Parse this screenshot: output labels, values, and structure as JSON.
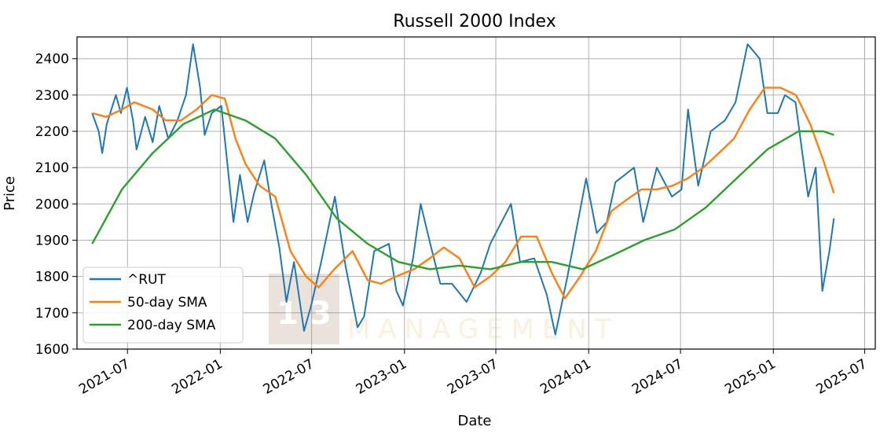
{
  "chart_data": {
    "type": "line",
    "title": "Russell 2000 Index",
    "xlabel": "Date",
    "ylabel": "Price",
    "xlim": [
      "2021-03-23",
      "2025-07-22"
    ],
    "ylim": [
      1600,
      2460
    ],
    "grid": true,
    "legend_position": "lower left",
    "x_ticks": [
      "2021-07",
      "2022-01",
      "2022-07",
      "2023-01",
      "2023-07",
      "2024-01",
      "2024-07",
      "2025-01",
      "2025-07"
    ],
    "y_ticks": [
      1600,
      1700,
      1800,
      1900,
      2000,
      2100,
      2200,
      2300,
      2400
    ],
    "series": [
      {
        "name": "^RUT",
        "color": "#1f77b4",
        "points": [
          [
            "2021-04-22",
            2250
          ],
          [
            "2021-05-05",
            2200
          ],
          [
            "2021-05-12",
            2140
          ],
          [
            "2021-05-21",
            2220
          ],
          [
            "2021-06-08",
            2300
          ],
          [
            "2021-06-18",
            2250
          ],
          [
            "2021-06-30",
            2320
          ],
          [
            "2021-07-12",
            2230
          ],
          [
            "2021-07-19",
            2150
          ],
          [
            "2021-08-05",
            2240
          ],
          [
            "2021-08-20",
            2170
          ],
          [
            "2021-09-02",
            2270
          ],
          [
            "2021-09-20",
            2180
          ],
          [
            "2021-10-08",
            2230
          ],
          [
            "2021-10-25",
            2300
          ],
          [
            "2021-11-08",
            2440
          ],
          [
            "2021-11-22",
            2320
          ],
          [
            "2021-12-01",
            2190
          ],
          [
            "2021-12-15",
            2250
          ],
          [
            "2022-01-03",
            2270
          ],
          [
            "2022-01-12",
            2150
          ],
          [
            "2022-01-27",
            1950
          ],
          [
            "2022-02-09",
            2080
          ],
          [
            "2022-02-24",
            1950
          ],
          [
            "2022-03-09",
            2030
          ],
          [
            "2022-03-29",
            2120
          ],
          [
            "2022-04-12",
            2000
          ],
          [
            "2022-04-28",
            1880
          ],
          [
            "2022-05-12",
            1730
          ],
          [
            "2022-05-27",
            1840
          ],
          [
            "2022-06-16",
            1650
          ],
          [
            "2022-06-30",
            1720
          ],
          [
            "2022-07-20",
            1840
          ],
          [
            "2022-08-16",
            2020
          ],
          [
            "2022-09-06",
            1830
          ],
          [
            "2022-09-30",
            1660
          ],
          [
            "2022-10-13",
            1690
          ],
          [
            "2022-11-02",
            1870
          ],
          [
            "2022-12-01",
            1890
          ],
          [
            "2022-12-16",
            1760
          ],
          [
            "2022-12-29",
            1720
          ],
          [
            "2023-01-18",
            1850
          ],
          [
            "2023-02-02",
            2000
          ],
          [
            "2023-02-21",
            1890
          ],
          [
            "2023-03-13",
            1780
          ],
          [
            "2023-04-05",
            1780
          ],
          [
            "2023-05-04",
            1730
          ],
          [
            "2023-06-01",
            1810
          ],
          [
            "2023-06-20",
            1890
          ],
          [
            "2023-07-31",
            2000
          ],
          [
            "2023-08-18",
            1840
          ],
          [
            "2023-09-15",
            1850
          ],
          [
            "2023-10-10",
            1750
          ],
          [
            "2023-10-27",
            1640
          ],
          [
            "2023-11-20",
            1800
          ],
          [
            "2023-12-27",
            2070
          ],
          [
            "2024-01-17",
            1920
          ],
          [
            "2024-02-06",
            1950
          ],
          [
            "2024-02-23",
            2060
          ],
          [
            "2024-03-31",
            2100
          ],
          [
            "2024-04-18",
            1950
          ],
          [
            "2024-05-15",
            2100
          ],
          [
            "2024-06-14",
            2020
          ],
          [
            "2024-07-03",
            2040
          ],
          [
            "2024-07-16",
            2260
          ],
          [
            "2024-08-05",
            2050
          ],
          [
            "2024-08-30",
            2200
          ],
          [
            "2024-09-27",
            2230
          ],
          [
            "2024-10-18",
            2280
          ],
          [
            "2024-11-11",
            2440
          ],
          [
            "2024-12-05",
            2400
          ],
          [
            "2024-12-20",
            2250
          ],
          [
            "2025-01-10",
            2250
          ],
          [
            "2025-01-24",
            2300
          ],
          [
            "2025-02-14",
            2280
          ],
          [
            "2025-03-11",
            2020
          ],
          [
            "2025-03-26",
            2100
          ],
          [
            "2025-04-08",
            1760
          ],
          [
            "2025-04-22",
            1870
          ],
          [
            "2025-05-01",
            1960
          ]
        ]
      },
      {
        "name": "50-day SMA",
        "color": "#ff7f0e",
        "points": [
          [
            "2021-04-22",
            2250
          ],
          [
            "2021-05-20",
            2240
          ],
          [
            "2021-06-20",
            2260
          ],
          [
            "2021-07-15",
            2280
          ],
          [
            "2021-08-20",
            2260
          ],
          [
            "2021-09-15",
            2230
          ],
          [
            "2021-10-15",
            2230
          ],
          [
            "2021-11-15",
            2260
          ],
          [
            "2021-12-15",
            2300
          ],
          [
            "2022-01-10",
            2290
          ],
          [
            "2022-01-31",
            2180
          ],
          [
            "2022-02-20",
            2110
          ],
          [
            "2022-03-20",
            2050
          ],
          [
            "2022-04-20",
            2020
          ],
          [
            "2022-05-20",
            1870
          ],
          [
            "2022-06-20",
            1800
          ],
          [
            "2022-07-15",
            1770
          ],
          [
            "2022-08-15",
            1820
          ],
          [
            "2022-09-20",
            1870
          ],
          [
            "2022-10-20",
            1790
          ],
          [
            "2022-11-15",
            1780
          ],
          [
            "2022-12-15",
            1800
          ],
          [
            "2023-01-20",
            1820
          ],
          [
            "2023-02-20",
            1850
          ],
          [
            "2023-03-20",
            1880
          ],
          [
            "2023-04-20",
            1850
          ],
          [
            "2023-05-20",
            1770
          ],
          [
            "2023-06-20",
            1800
          ],
          [
            "2023-07-20",
            1840
          ],
          [
            "2023-08-20",
            1910
          ],
          [
            "2023-09-20",
            1910
          ],
          [
            "2023-10-20",
            1810
          ],
          [
            "2023-11-15",
            1740
          ],
          [
            "2023-12-15",
            1800
          ],
          [
            "2024-01-15",
            1870
          ],
          [
            "2024-02-15",
            1980
          ],
          [
            "2024-03-15",
            2010
          ],
          [
            "2024-04-15",
            2040
          ],
          [
            "2024-05-15",
            2040
          ],
          [
            "2024-06-15",
            2050
          ],
          [
            "2024-07-15",
            2070
          ],
          [
            "2024-08-15",
            2100
          ],
          [
            "2024-09-15",
            2140
          ],
          [
            "2024-10-15",
            2180
          ],
          [
            "2024-11-15",
            2260
          ],
          [
            "2024-12-15",
            2320
          ],
          [
            "2025-01-15",
            2320
          ],
          [
            "2025-02-15",
            2300
          ],
          [
            "2025-03-15",
            2220
          ],
          [
            "2025-04-10",
            2120
          ],
          [
            "2025-05-01",
            2030
          ]
        ]
      },
      {
        "name": "200-day SMA",
        "color": "#2ca02c",
        "points": [
          [
            "2021-04-22",
            1890
          ],
          [
            "2021-06-20",
            2040
          ],
          [
            "2021-08-20",
            2140
          ],
          [
            "2021-10-20",
            2220
          ],
          [
            "2021-12-20",
            2260
          ],
          [
            "2022-02-20",
            2230
          ],
          [
            "2022-04-20",
            2180
          ],
          [
            "2022-06-20",
            2080
          ],
          [
            "2022-08-20",
            1960
          ],
          [
            "2022-10-20",
            1890
          ],
          [
            "2022-12-20",
            1840
          ],
          [
            "2023-02-20",
            1820
          ],
          [
            "2023-04-20",
            1830
          ],
          [
            "2023-06-20",
            1820
          ],
          [
            "2023-08-20",
            1840
          ],
          [
            "2023-10-20",
            1840
          ],
          [
            "2023-12-20",
            1820
          ],
          [
            "2024-02-20",
            1860
          ],
          [
            "2024-04-20",
            1900
          ],
          [
            "2024-06-20",
            1930
          ],
          [
            "2024-08-20",
            1990
          ],
          [
            "2024-10-20",
            2070
          ],
          [
            "2024-12-20",
            2150
          ],
          [
            "2025-02-20",
            2200
          ],
          [
            "2025-04-10",
            2200
          ],
          [
            "2025-05-01",
            2190
          ]
        ]
      }
    ]
  },
  "watermark": {
    "logo_text": "1 3",
    "logo_color": "#8b6a3e",
    "wordmark_text": "MANAGEMENT",
    "wordmark_color": "#e6b24a"
  }
}
